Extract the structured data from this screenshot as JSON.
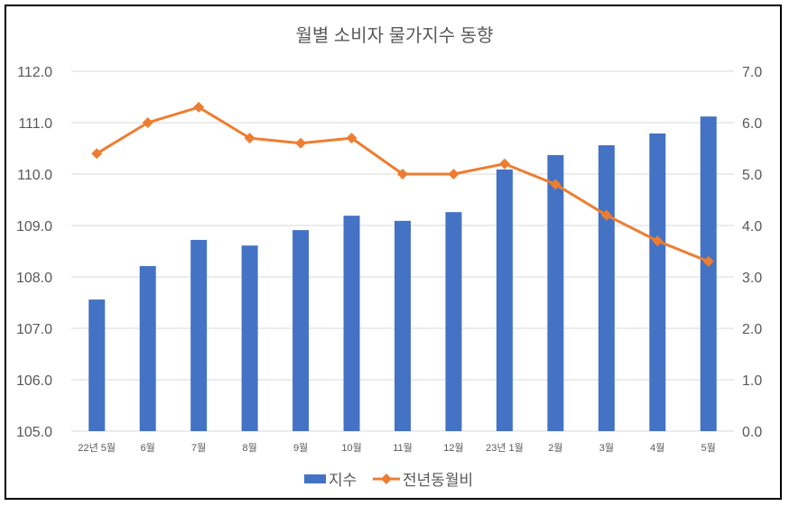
{
  "chart_data": {
    "type": "bar+line",
    "title": "월별 소비자 물가지수 동향",
    "categories": [
      "22년 5월",
      "6월",
      "7월",
      "8월",
      "9월",
      "10월",
      "11월",
      "12월",
      "23년 1월",
      "2월",
      "3월",
      "4월",
      "5월"
    ],
    "series": [
      {
        "name": "지수",
        "type": "bar",
        "axis": "left",
        "color": "#4472C4",
        "values": [
          107.56,
          108.21,
          108.72,
          108.61,
          108.91,
          109.19,
          109.09,
          109.26,
          110.09,
          110.37,
          110.56,
          110.79,
          111.12
        ]
      },
      {
        "name": "전년동월비",
        "type": "line",
        "axis": "right",
        "color": "#ED7D31",
        "marker": "diamond",
        "values": [
          5.4,
          6.0,
          6.3,
          5.7,
          5.6,
          5.7,
          5.0,
          5.0,
          5.2,
          4.8,
          4.2,
          3.7,
          3.3
        ]
      }
    ],
    "y_left": {
      "min": 105.0,
      "max": 112.0,
      "step": 1.0,
      "ticks": [
        "105.0",
        "106.0",
        "107.0",
        "108.0",
        "109.0",
        "110.0",
        "111.0",
        "112.0"
      ]
    },
    "y_right": {
      "min": 0.0,
      "max": 7.0,
      "step": 1.0,
      "ticks": [
        "0.0",
        "1.0",
        "2.0",
        "3.0",
        "4.0",
        "5.0",
        "6.0",
        "7.0"
      ]
    },
    "grid": true,
    "legend": "bottom"
  }
}
